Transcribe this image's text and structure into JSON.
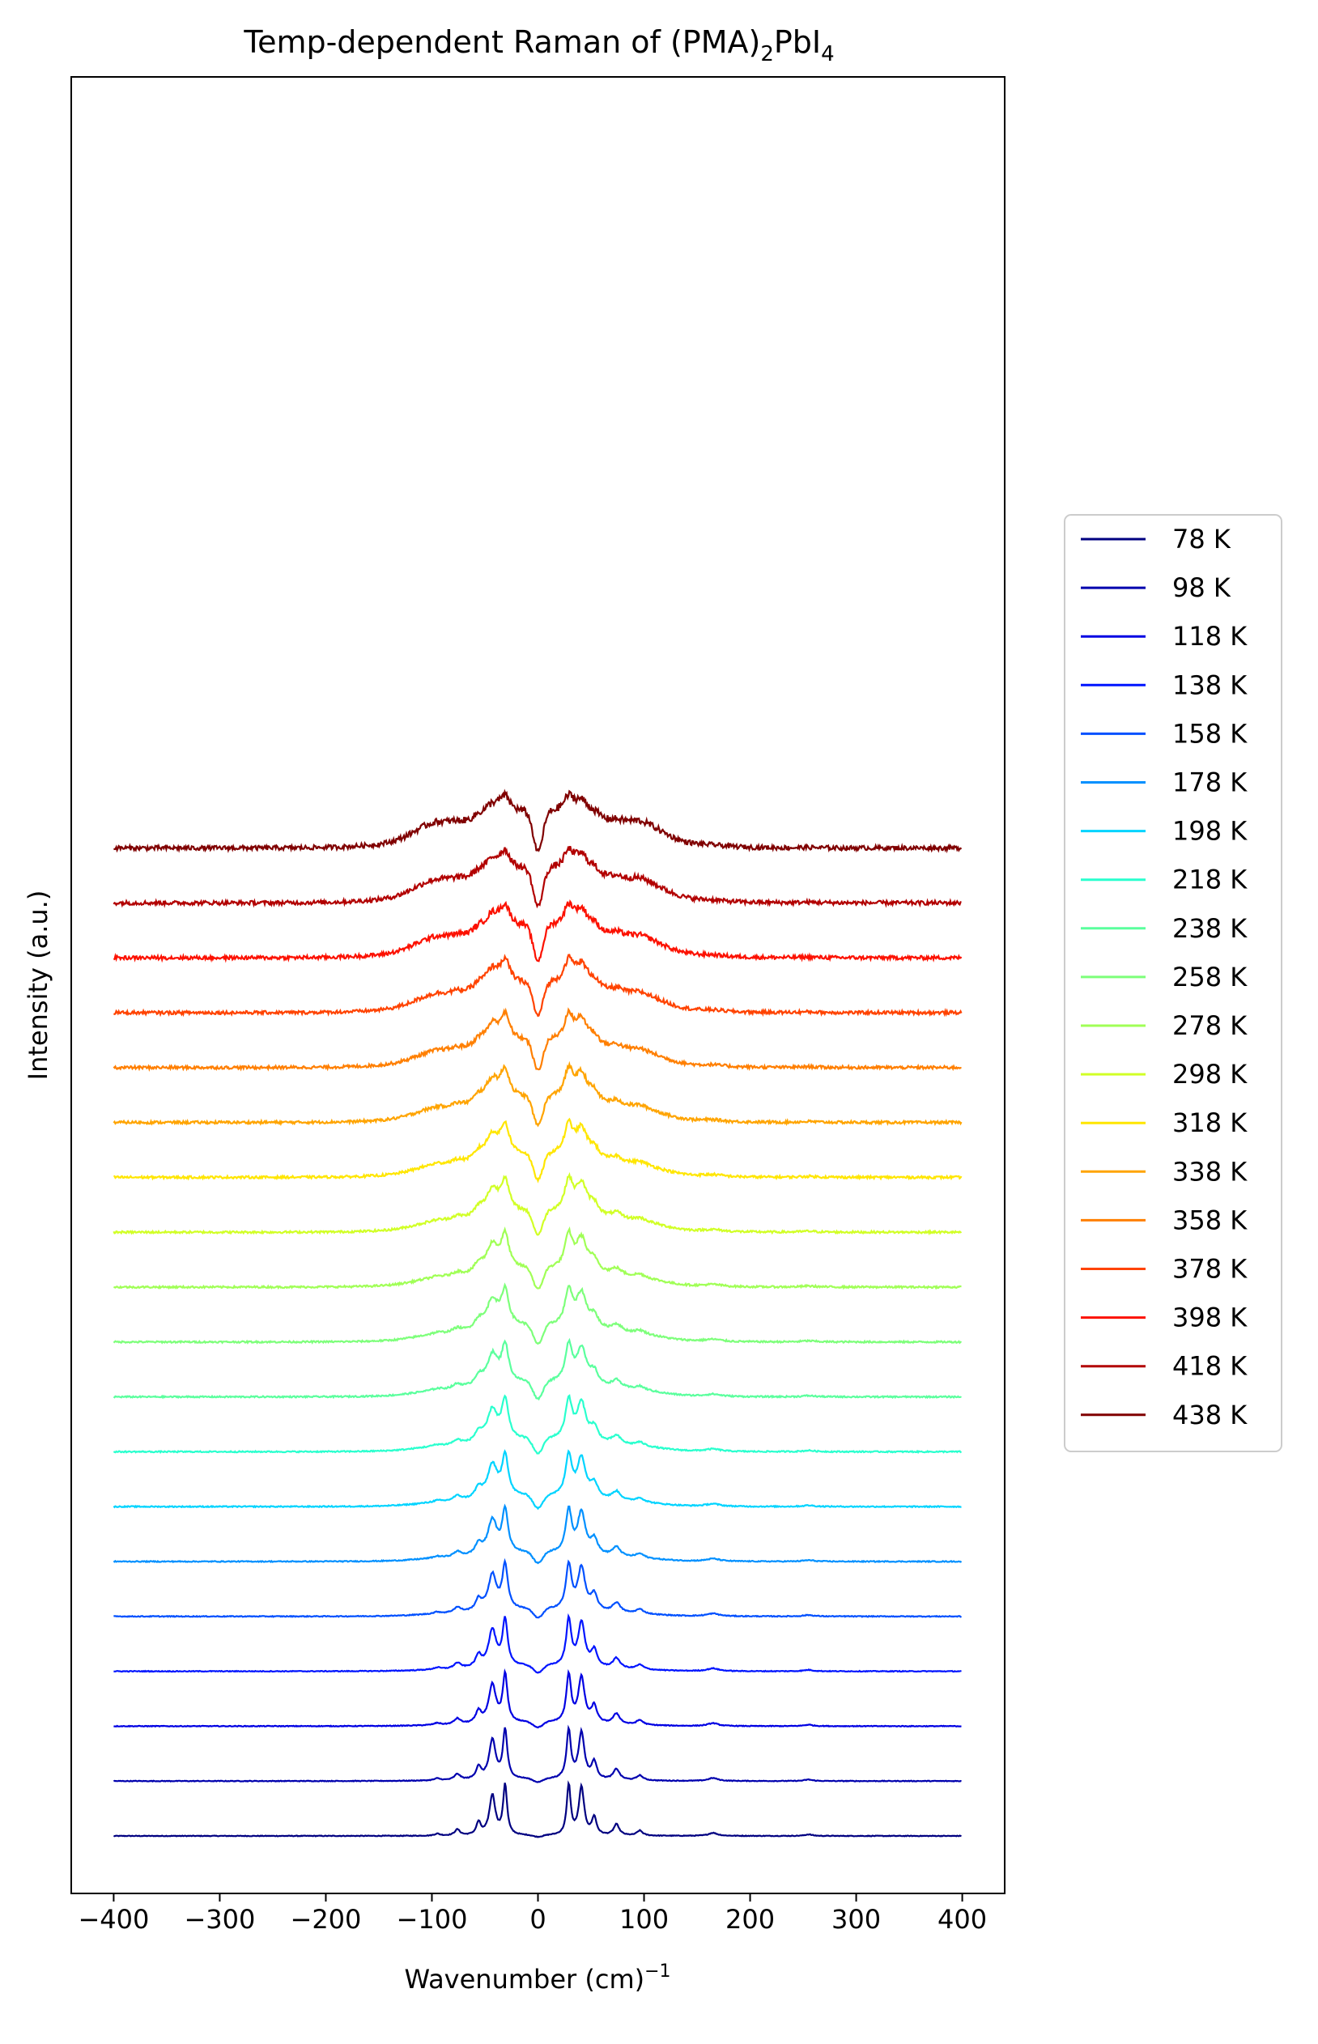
{
  "chart_data": {
    "type": "line",
    "title": "Temp-dependent Raman of (PMA)",
    "title_sub1": "2",
    "title_mid": "PbI",
    "title_sub2": "4",
    "xlabel": "Wavenumber (cm)",
    "xlabel_sup": "−1",
    "ylabel": "Intensity (a.u.)",
    "xlim": [
      -440,
      440
    ],
    "x_ticks": [
      -400,
      -300,
      -200,
      -100,
      0,
      100,
      200,
      300,
      400
    ],
    "x_tick_labels": [
      "−400",
      "−300",
      "−200",
      "−100",
      "0",
      "100",
      "200",
      "300",
      "400"
    ],
    "y_ticks_shown": false,
    "grid": false,
    "legend_position": "right, outside plot",
    "offset_note": "curves vertically stacked with constant offset",
    "series": [
      {
        "name": "78 K",
        "color": "#000080"
      },
      {
        "name": "98 K",
        "color": "#0000ae"
      },
      {
        "name": "118 K",
        "color": "#0000e3"
      },
      {
        "name": "138 K",
        "color": "#0014ff"
      },
      {
        "name": "158 K",
        "color": "#0050ff"
      },
      {
        "name": "178 K",
        "color": "#0090ff"
      },
      {
        "name": "198 K",
        "color": "#00d4ff"
      },
      {
        "name": "218 K",
        "color": "#29ffce"
      },
      {
        "name": "238 K",
        "color": "#5aff9d"
      },
      {
        "name": "258 K",
        "color": "#7dff7a"
      },
      {
        "name": "278 K",
        "color": "#a0ff56"
      },
      {
        "name": "298 K",
        "color": "#d1ff26"
      },
      {
        "name": "318 K",
        "color": "#ffe600"
      },
      {
        "name": "338 K",
        "color": "#ffa400"
      },
      {
        "name": "358 K",
        "color": "#ff7f00"
      },
      {
        "name": "378 K",
        "color": "#ff4300"
      },
      {
        "name": "398 K",
        "color": "#fc1100"
      },
      {
        "name": "418 K",
        "color": "#b20000"
      },
      {
        "name": "438 K",
        "color": "#800000"
      }
    ]
  }
}
